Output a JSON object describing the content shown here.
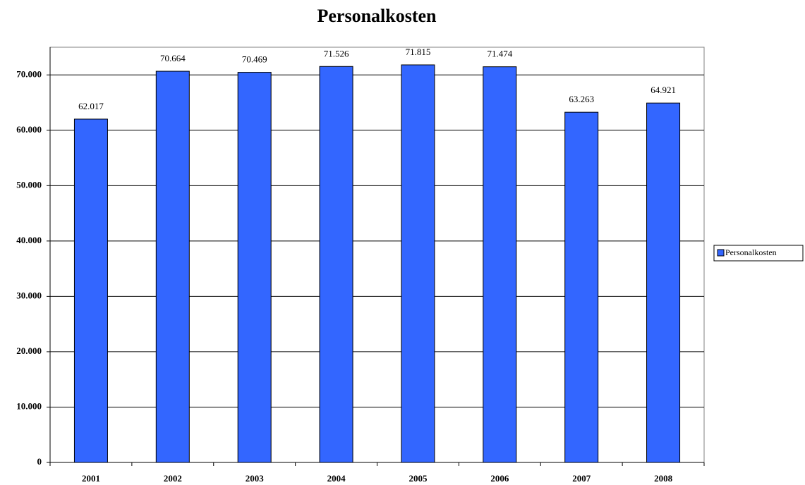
{
  "chart_data": {
    "type": "bar",
    "title": "Personalkosten",
    "categories": [
      "2001",
      "2002",
      "2003",
      "2004",
      "2005",
      "2006",
      "2007",
      "2008"
    ],
    "series": [
      {
        "name": "Personalkosten",
        "color": "#3366ff",
        "values": [
          62017,
          70664,
          70469,
          71526,
          71815,
          71474,
          63263,
          64921
        ],
        "value_labels": [
          "62.017",
          "70.664",
          "70.469",
          "71.526",
          "71.815",
          "71.474",
          "63.263",
          "64.921"
        ]
      }
    ],
    "ylim": [
      0,
      75000
    ],
    "yticks": [
      0,
      {
        "value": 10000,
        "label": "10.000"
      },
      {
        "value": 20000,
        "label": "20.000"
      },
      {
        "value": 30000,
        "label": "30.000"
      },
      {
        "value": 40000,
        "label": "40.000"
      },
      {
        "value": 50000,
        "label": "50.000"
      },
      {
        "value": 60000,
        "label": "60.000"
      },
      {
        "value": 70000,
        "label": "70.000"
      }
    ],
    "grid": true,
    "legend": "right"
  }
}
